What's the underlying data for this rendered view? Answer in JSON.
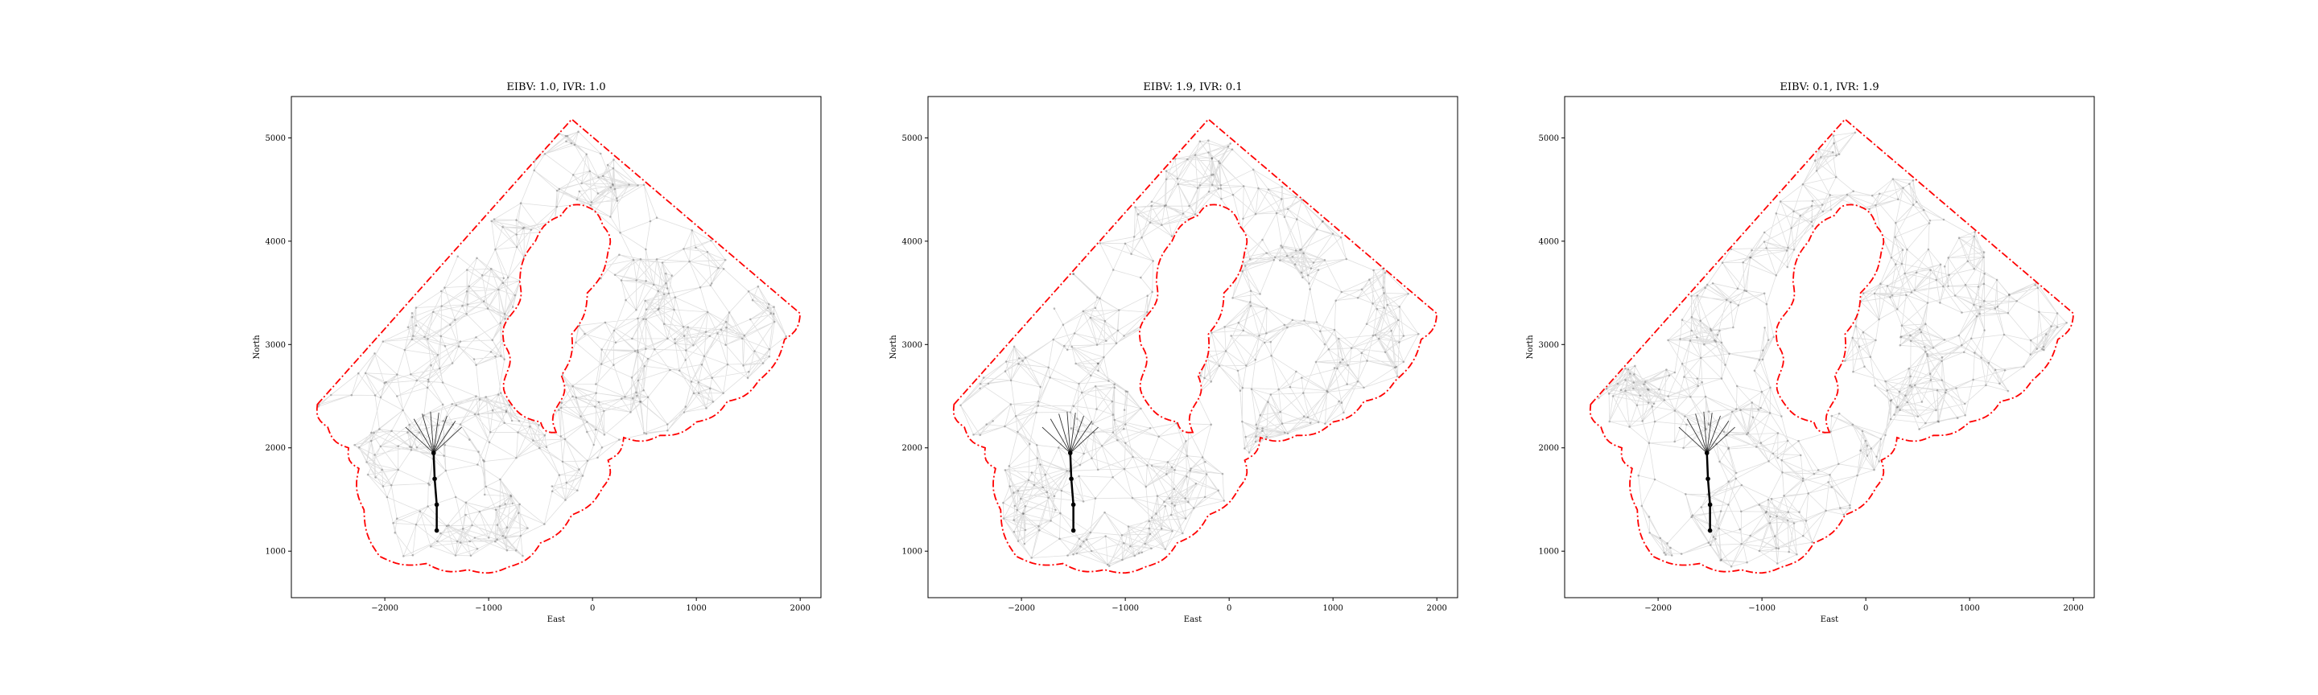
{
  "chart_data": [
    {
      "type": "scatter",
      "title": "EIBV: 1.0, IVR: 1.0",
      "xlabel": "East",
      "ylabel": "North",
      "xlim": [
        -2900,
        2200
      ],
      "ylim": [
        550,
        5400
      ],
      "xticks": [
        -2000,
        -1000,
        0,
        1000,
        2000
      ],
      "xtick_labels": [
        "−2000",
        "−1000",
        "0",
        "1000",
        "2000"
      ],
      "yticks": [
        1000,
        2000,
        3000,
        4000,
        5000
      ],
      "ytick_labels": [
        "1000",
        "2000",
        "3000",
        "4000",
        "5000"
      ],
      "boundary_color": "#ff0000",
      "path_color": "#000000",
      "seed": 11
    },
    {
      "type": "scatter",
      "title": "EIBV: 1.9, IVR: 0.1",
      "xlabel": "East",
      "ylabel": "North",
      "xlim": [
        -2900,
        2200
      ],
      "ylim": [
        550,
        5400
      ],
      "xticks": [
        -2000,
        -1000,
        0,
        1000,
        2000
      ],
      "xtick_labels": [
        "−2000",
        "−1000",
        "0",
        "1000",
        "2000"
      ],
      "yticks": [
        1000,
        2000,
        3000,
        4000,
        5000
      ],
      "ytick_labels": [
        "1000",
        "2000",
        "3000",
        "4000",
        "5000"
      ],
      "boundary_color": "#ff0000",
      "path_color": "#000000",
      "seed": 23
    },
    {
      "type": "scatter",
      "title": "EIBV: 0.1, IVR: 1.9",
      "xlabel": "East",
      "ylabel": "North",
      "xlim": [
        -2900,
        2200
      ],
      "ylim": [
        550,
        5400
      ],
      "xticks": [
        -2000,
        -1000,
        0,
        1000,
        2000
      ],
      "xtick_labels": [
        "−2000",
        "−1000",
        "0",
        "1000",
        "2000"
      ],
      "yticks": [
        1000,
        2000,
        3000,
        4000,
        5000
      ],
      "ytick_labels": [
        "1000",
        "2000",
        "3000",
        "4000",
        "5000"
      ],
      "boundary_color": "#ff0000",
      "path_color": "#000000",
      "seed": 37
    }
  ],
  "shared": {
    "outer_boundary": [
      [
        -2650,
        2420
      ],
      [
        -200,
        5180
      ],
      [
        2000,
        3300
      ],
      [
        1850,
        3050
      ],
      [
        1600,
        2650
      ],
      [
        1300,
        2450
      ],
      [
        1000,
        2250
      ],
      [
        650,
        2120
      ],
      [
        300,
        2100
      ],
      [
        150,
        1880
      ],
      [
        100,
        1620
      ],
      [
        -200,
        1350
      ],
      [
        -500,
        1080
      ],
      [
        -800,
        850
      ],
      [
        -1200,
        820
      ],
      [
        -1600,
        880
      ],
      [
        -2050,
        950
      ],
      [
        -2200,
        1400
      ],
      [
        -2250,
        1800
      ],
      [
        -2350,
        2000
      ],
      [
        -2550,
        2200
      ]
    ],
    "inner_boundary": [
      [
        -350,
        2150
      ],
      [
        -500,
        2250
      ],
      [
        -800,
        2450
      ],
      [
        -850,
        3000
      ],
      [
        -700,
        3600
      ],
      [
        -550,
        4000
      ],
      [
        -300,
        4250
      ],
      [
        -100,
        4350
      ],
      [
        100,
        4150
      ],
      [
        150,
        3900
      ],
      [
        -50,
        3500
      ],
      [
        -200,
        3100
      ],
      [
        -300,
        2700
      ]
    ],
    "path_points": [
      [
        -1500,
        1200
      ],
      [
        -1500,
        1450
      ],
      [
        -1520,
        1700
      ],
      [
        -1530,
        1950
      ]
    ],
    "fan_targets": [
      [
        -1800,
        2200
      ],
      [
        -1720,
        2280
      ],
      [
        -1640,
        2330
      ],
      [
        -1560,
        2350
      ],
      [
        -1480,
        2340
      ],
      [
        -1400,
        2310
      ],
      [
        -1320,
        2260
      ],
      [
        -1260,
        2200
      ]
    ]
  }
}
